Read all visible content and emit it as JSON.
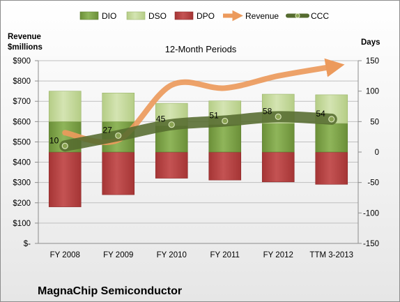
{
  "chart_data": {
    "type": "bar",
    "title": "12-Month Periods",
    "company": "MagnaChip Semiconductor",
    "categories": [
      "FY 2008",
      "FY 2009",
      "FY 2010",
      "FY 2011",
      "FY 2012",
      "TTM 3-2013"
    ],
    "left_axis": {
      "label_line1": "Revenue",
      "label_line2": "$millions",
      "min": 0,
      "max": 900,
      "step": 100,
      "tick_labels": [
        "$-",
        "$100",
        "$200",
        "$300",
        "$400",
        "$500",
        "$600",
        "$700",
        "$800",
        "$900"
      ]
    },
    "right_axis": {
      "label": "Days",
      "min": -150,
      "max": 150,
      "step": 50,
      "tick_labels": [
        "-150",
        "-100",
        "-50",
        "0",
        "50",
        "100",
        "150"
      ]
    },
    "series": [
      {
        "name": "DIO",
        "axis": "right",
        "kind": "bar",
        "color": "#7ea34a",
        "values": [
          50,
          50,
          43,
          45,
          47,
          47
        ]
      },
      {
        "name": "DSO",
        "axis": "right",
        "kind": "bar",
        "color": "#c4d89b",
        "values": [
          50,
          47,
          37,
          39,
          48,
          47
        ]
      },
      {
        "name": "DPO",
        "axis": "right",
        "kind": "bar",
        "color": "#b84343",
        "values": [
          -90,
          -70,
          -43,
          -46,
          -49,
          -53
        ]
      },
      {
        "name": "Revenue",
        "axis": "left",
        "kind": "line",
        "color": "#ec9a5c",
        "values": [
          545,
          510,
          780,
          765,
          825,
          870
        ]
      },
      {
        "name": "CCC",
        "axis": "right",
        "kind": "line",
        "color": "#556b2f",
        "values": [
          10,
          27,
          45,
          51,
          58,
          54
        ],
        "labels": [
          "10",
          "27",
          "45",
          "51",
          "58",
          "54"
        ]
      }
    ],
    "legend_position": "top",
    "grid": true
  }
}
